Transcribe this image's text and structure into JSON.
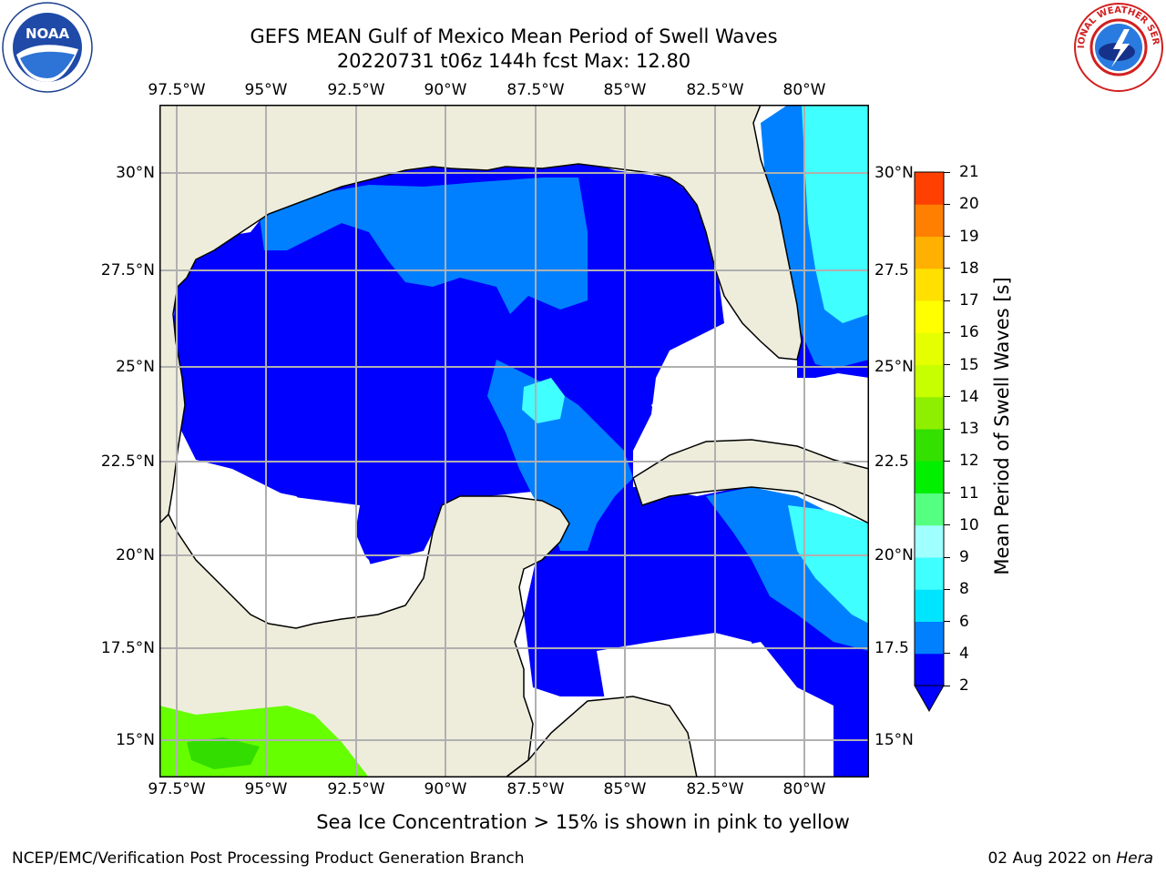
{
  "header": {
    "title_line1": "GEFS MEAN Gulf of Mexico Mean Period of Swell Waves",
    "title_line2": "20220731 t06z 144h fcst   Max: 12.80"
  },
  "logos": {
    "left": "NOAA",
    "left_ring_text": "NATIONAL OCEANIC AND ATMOSPHERIC ADMINISTRATION · U.S. DEPARTMENT OF COMMERCE",
    "right_ring_text": "NATIONAL WEATHER SERVICE"
  },
  "map": {
    "lon_ticks": [
      "97.5°W",
      "95°W",
      "92.5°W",
      "90°W",
      "87.5°W",
      "85°W",
      "82.5°W",
      "80°W"
    ],
    "lat_ticks_left": [
      "30°N",
      "27.5°N",
      "25°N",
      "22.5°N",
      "20°N",
      "17.5°N",
      "15°N"
    ],
    "lat_ticks_right": [
      "30°N",
      "27.5",
      "25°N",
      "22.5",
      "20°N",
      "17.5",
      "15°N"
    ],
    "lon_range": [
      -98,
      -78.2
    ],
    "lat_range": [
      14,
      31.8
    ],
    "colors": {
      "land": "#eeeddc",
      "water_missing": "#ffffff",
      "grid": "#b0b0b0"
    }
  },
  "colorbar": {
    "label": "Mean Period of Swell Waves [s]",
    "ticks": [
      "2",
      "4",
      "6",
      "8",
      "9",
      "10",
      "11",
      "12",
      "13",
      "14",
      "15",
      "16",
      "17",
      "18",
      "19",
      "20",
      "21"
    ],
    "colors": [
      "#0000ff",
      "#0080ff",
      "#00e5ff",
      "#40ffff",
      "#a0ffff",
      "#55ff7f",
      "#00f000",
      "#33e000",
      "#8ef000",
      "#c8ff00",
      "#e6ff00",
      "#ffff00",
      "#ffe000",
      "#ffb000",
      "#ff8000",
      "#ff4000",
      "#ff0000"
    ],
    "extend": "min"
  },
  "notes": {
    "sea_ice": "Sea Ice Concentration > 15% is shown in pink to yellow"
  },
  "footer": {
    "left": "NCEP/EMC/Verification Post Processing Product Generation Branch",
    "right_date": "02 Aug 2022 on ",
    "right_host": "Hera"
  }
}
